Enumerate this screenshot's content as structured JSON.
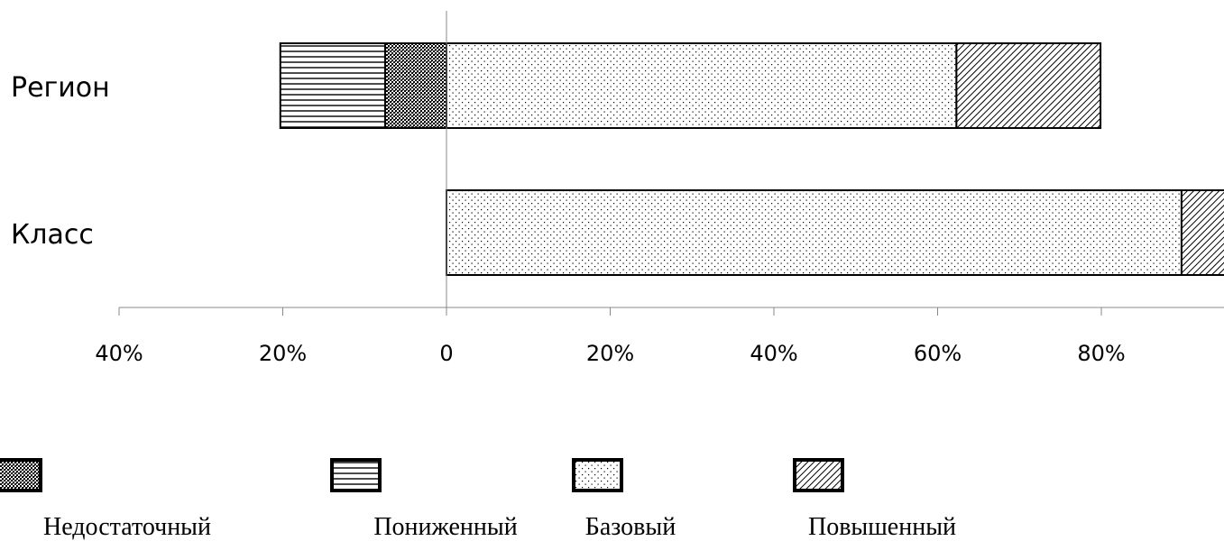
{
  "chart_data": {
    "type": "bar",
    "orientation": "horizontal",
    "stacked": true,
    "diverging": true,
    "categories": [
      "Регион",
      "Класс"
    ],
    "x_tick_labels": [
      "40%",
      "20%",
      "0",
      "20%",
      "40%",
      "60%",
      "80%"
    ],
    "x_tick_values": [
      -40,
      -20,
      0,
      20,
      40,
      60,
      80
    ],
    "xlim": [
      -40,
      95
    ],
    "series": [
      {
        "name": "Недостаточный",
        "values": [
          -7.5,
          0
        ],
        "pattern": "dense-dots"
      },
      {
        "name": "Пониженный",
        "values": [
          -12.8,
          0
        ],
        "pattern": "horizontal-lines"
      },
      {
        "name": "Базовый",
        "values": [
          62.3,
          89.8
        ],
        "pattern": "sparse-dots"
      },
      {
        "name": "Повышенный",
        "values": [
          17.6,
          10.2
        ],
        "pattern": "diagonal-lines"
      }
    ],
    "legend_position": "bottom",
    "grid": false,
    "colors": {
      "stroke": "#000000",
      "axis": "#888888",
      "fill": "#ffffff"
    }
  }
}
